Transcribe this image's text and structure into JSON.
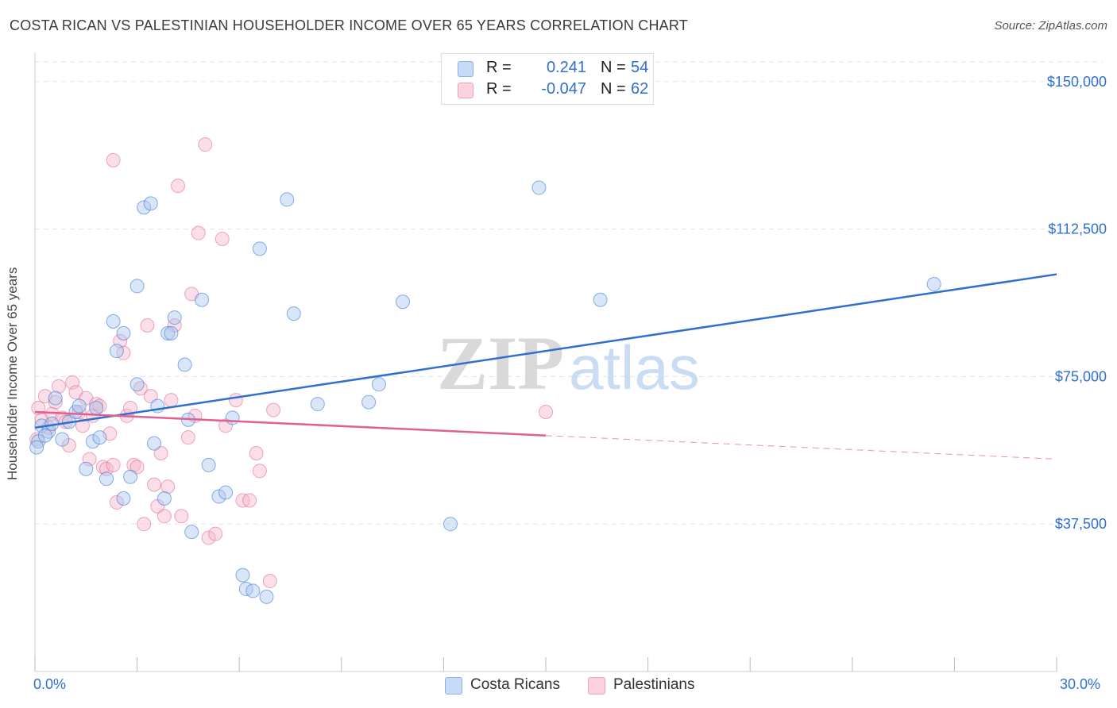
{
  "title": "COSTA RICAN VS PALESTINIAN HOUSEHOLDER INCOME OVER 65 YEARS CORRELATION CHART",
  "source": "Source: ZipAtlas.com",
  "watermark": {
    "zip": "ZIP",
    "atlas": "atlas"
  },
  "legend": {
    "rows": [
      {
        "r_label": "R =",
        "r_value": "0.241",
        "n_label": "N =",
        "n_value": "54",
        "color": "#aac8f0"
      },
      {
        "r_label": "R =",
        "r_value": "-0.047",
        "n_label": "N =",
        "n_value": "62",
        "color": "#f5b8cb"
      }
    ]
  },
  "bottom_legend": {
    "series1": "Costa Ricans",
    "series2": "Palestinians"
  },
  "colors": {
    "blue": "#2f6fd0",
    "blue_fill": "#aac8f0",
    "pink": "#e0608f",
    "pink_fill": "#f5b8cb",
    "grid": "#e3e3e3",
    "tick_label": "#2f6fd0"
  },
  "chart_data": {
    "type": "scatter",
    "title": "COSTA RICAN VS PALESTINIAN HOUSEHOLDER INCOME OVER 65 YEARS CORRELATION CHART",
    "xlabel": "",
    "ylabel": "Householder Income Over 65 years",
    "xlim": [
      0,
      30
    ],
    "ylim": [
      0,
      155000
    ],
    "x_tick_labels": [
      "0.0%",
      "30.0%"
    ],
    "y_ticks": [
      37500,
      75000,
      112500,
      150000
    ],
    "y_tick_labels": [
      "$37,500",
      "$75,000",
      "$112,500",
      "$150,000"
    ],
    "series": [
      {
        "name": "Costa Ricans",
        "color": "#2f6fd0",
        "trend": {
          "x": [
            0,
            30
          ],
          "y": [
            62000,
            101000
          ],
          "dash_from": null
        },
        "points": [
          [
            0.1,
            58500
          ],
          [
            0.2,
            62500
          ],
          [
            0.4,
            61000
          ],
          [
            0.5,
            63000
          ],
          [
            0.6,
            69500
          ],
          [
            0.8,
            59000
          ],
          [
            1.0,
            63500
          ],
          [
            1.2,
            66000
          ],
          [
            1.3,
            67500
          ],
          [
            1.5,
            51500
          ],
          [
            1.7,
            58500
          ],
          [
            1.8,
            67000
          ],
          [
            1.9,
            59500
          ],
          [
            2.1,
            49000
          ],
          [
            2.3,
            89000
          ],
          [
            2.4,
            81500
          ],
          [
            2.6,
            86000
          ],
          [
            2.6,
            44000
          ],
          [
            2.8,
            49500
          ],
          [
            3.0,
            73000
          ],
          [
            3.0,
            98000
          ],
          [
            3.2,
            118000
          ],
          [
            3.4,
            119000
          ],
          [
            3.5,
            58000
          ],
          [
            3.6,
            67500
          ],
          [
            3.8,
            44000
          ],
          [
            3.9,
            86000
          ],
          [
            4.0,
            86000
          ],
          [
            4.1,
            90000
          ],
          [
            4.4,
            78000
          ],
          [
            4.5,
            64000
          ],
          [
            4.6,
            35500
          ],
          [
            4.9,
            94500
          ],
          [
            5.1,
            52500
          ],
          [
            5.4,
            44500
          ],
          [
            5.6,
            45500
          ],
          [
            5.8,
            64500
          ],
          [
            6.1,
            24500
          ],
          [
            6.2,
            21000
          ],
          [
            6.4,
            20500
          ],
          [
            6.6,
            107500
          ],
          [
            6.8,
            19000
          ],
          [
            7.4,
            120000
          ],
          [
            7.6,
            91000
          ],
          [
            8.3,
            68000
          ],
          [
            9.8,
            68500
          ],
          [
            10.1,
            73000
          ],
          [
            10.8,
            94000
          ],
          [
            12.2,
            37500
          ],
          [
            14.8,
            123000
          ],
          [
            16.6,
            94500
          ],
          [
            26.4,
            98500
          ],
          [
            0.05,
            57000
          ],
          [
            0.3,
            60000
          ]
        ]
      },
      {
        "name": "Palestinians",
        "color": "#e0608f",
        "trend": {
          "x": [
            0,
            30
          ],
          "y": [
            66000,
            54000
          ],
          "dash_from": 15
        },
        "points": [
          [
            0.1,
            67000
          ],
          [
            0.2,
            64000
          ],
          [
            0.3,
            70000
          ],
          [
            0.4,
            62000
          ],
          [
            0.5,
            65500
          ],
          [
            0.6,
            68500
          ],
          [
            0.7,
            72500
          ],
          [
            0.8,
            64500
          ],
          [
            0.9,
            63500
          ],
          [
            1.0,
            57500
          ],
          [
            1.1,
            73500
          ],
          [
            1.2,
            71000
          ],
          [
            1.3,
            66000
          ],
          [
            1.4,
            62500
          ],
          [
            1.5,
            69500
          ],
          [
            1.6,
            54000
          ],
          [
            1.7,
            65000
          ],
          [
            1.8,
            68000
          ],
          [
            1.9,
            67500
          ],
          [
            2.0,
            52000
          ],
          [
            2.1,
            51500
          ],
          [
            2.2,
            60500
          ],
          [
            2.3,
            52500
          ],
          [
            2.4,
            43000
          ],
          [
            2.5,
            84000
          ],
          [
            2.6,
            81000
          ],
          [
            2.7,
            65000
          ],
          [
            2.8,
            67000
          ],
          [
            2.9,
            52500
          ],
          [
            3.0,
            52000
          ],
          [
            3.1,
            72000
          ],
          [
            3.2,
            37500
          ],
          [
            3.3,
            88000
          ],
          [
            3.4,
            70000
          ],
          [
            3.5,
            47500
          ],
          [
            3.6,
            42000
          ],
          [
            3.7,
            55500
          ],
          [
            3.8,
            39500
          ],
          [
            3.9,
            47000
          ],
          [
            4.0,
            69000
          ],
          [
            4.1,
            88000
          ],
          [
            4.2,
            123500
          ],
          [
            4.3,
            39500
          ],
          [
            4.5,
            59500
          ],
          [
            4.6,
            96000
          ],
          [
            4.7,
            65000
          ],
          [
            4.8,
            111500
          ],
          [
            5.0,
            134000
          ],
          [
            5.1,
            34000
          ],
          [
            5.3,
            35000
          ],
          [
            5.5,
            110000
          ],
          [
            5.6,
            62500
          ],
          [
            5.9,
            69000
          ],
          [
            6.1,
            43500
          ],
          [
            6.3,
            43500
          ],
          [
            6.5,
            55500
          ],
          [
            6.6,
            51000
          ],
          [
            6.9,
            23000
          ],
          [
            7.0,
            66500
          ],
          [
            2.3,
            130000
          ],
          [
            15.0,
            66000
          ],
          [
            0.05,
            59000
          ]
        ]
      }
    ]
  }
}
